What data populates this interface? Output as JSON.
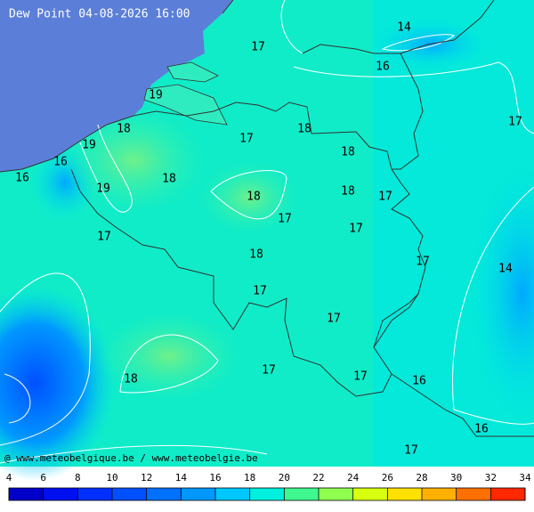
{
  "header": {
    "title": "Dew Point 04-08-2026 16:00"
  },
  "labels": [
    17,
    14,
    16,
    17,
    19,
    18,
    17,
    18,
    19,
    18,
    16,
    16,
    18,
    19,
    18,
    18,
    17,
    17,
    17,
    17,
    18,
    17,
    14,
    17,
    17,
    17,
    18,
    17,
    16,
    16,
    17
  ],
  "credit": "@ www.meteobelgique.be / www.meteobelgie.be",
  "colorbar": {
    "ticks": [
      4,
      6,
      8,
      10,
      12,
      14,
      16,
      18,
      20,
      22,
      24,
      26,
      28,
      30,
      32,
      34
    ],
    "colors": [
      "#0000c8",
      "#0010f0",
      "#0030ff",
      "#0050ff",
      "#0070ff",
      "#0098ff",
      "#00c8ff",
      "#00f0e0",
      "#40f890",
      "#90ff50",
      "#d8ff10",
      "#ffe000",
      "#ffb000",
      "#ff7000",
      "#ff2800"
    ]
  }
}
